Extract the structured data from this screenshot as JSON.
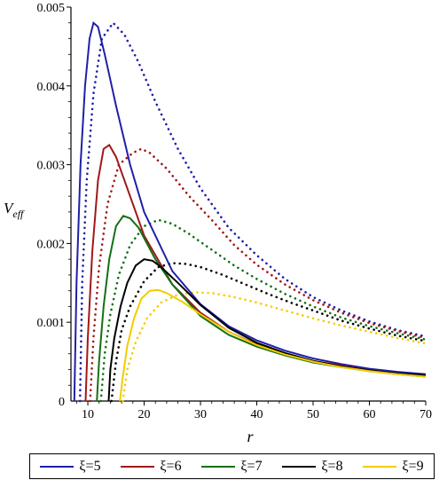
{
  "chart_data": {
    "type": "line",
    "xlabel": "r",
    "ylabel_main": "V",
    "ylabel_sub": "eff",
    "xlim": [
      7,
      70
    ],
    "ylim": [
      0,
      0.005
    ],
    "x_ticks": [
      10,
      20,
      30,
      40,
      50,
      60,
      70
    ],
    "y_ticks": [
      0.001,
      0.002,
      0.003,
      0.004,
      0.005
    ],
    "y_tick_labels": [
      "0.001",
      "0.002",
      "0.003",
      "0.004",
      "0.005"
    ],
    "origin_label": "0",
    "legend_position": "bottom",
    "series": [
      {
        "name": "ξ=5",
        "color": "#1f1fa8",
        "solid": [
          [
            7.6,
            0.0
          ],
          [
            8.0,
            0.0015
          ],
          [
            8.7,
            0.003
          ],
          [
            9.5,
            0.004
          ],
          [
            10.3,
            0.0046
          ],
          [
            11.0,
            0.0048
          ],
          [
            11.8,
            0.00475
          ],
          [
            13.0,
            0.0044
          ],
          [
            15.0,
            0.00375
          ],
          [
            17.5,
            0.003
          ],
          [
            20.0,
            0.0024
          ],
          [
            25.0,
            0.00165
          ],
          [
            30.0,
            0.00123
          ],
          [
            35.0,
            0.00095
          ],
          [
            40.0,
            0.00077
          ],
          [
            45.0,
            0.00064
          ],
          [
            50.0,
            0.00054
          ],
          [
            55.0,
            0.00047
          ],
          [
            60.0,
            0.00041
          ],
          [
            65.0,
            0.00037
          ],
          [
            70.0,
            0.00034
          ]
        ],
        "dotted": [
          [
            8.6,
            0.0
          ],
          [
            9.0,
            0.0015
          ],
          [
            9.8,
            0.0028
          ],
          [
            11.0,
            0.0039
          ],
          [
            12.5,
            0.0046
          ],
          [
            14.5,
            0.0048
          ],
          [
            16.5,
            0.00465
          ],
          [
            19.0,
            0.0043
          ],
          [
            22.0,
            0.0038
          ],
          [
            26.0,
            0.0032
          ],
          [
            30.0,
            0.0027
          ],
          [
            35.0,
            0.0022
          ],
          [
            40.0,
            0.00185
          ],
          [
            45.0,
            0.00155
          ],
          [
            50.0,
            0.00132
          ],
          [
            55.0,
            0.00115
          ],
          [
            60.0,
            0.00101
          ],
          [
            65.0,
            0.0009
          ],
          [
            70.0,
            0.00082
          ]
        ]
      },
      {
        "name": "ξ=6",
        "color": "#a01818",
        "solid": [
          [
            9.6,
            0.0
          ],
          [
            10.0,
            0.0008
          ],
          [
            10.8,
            0.0019
          ],
          [
            11.8,
            0.0028
          ],
          [
            12.8,
            0.0032
          ],
          [
            13.8,
            0.00325
          ],
          [
            15.0,
            0.0031
          ],
          [
            17.0,
            0.0027
          ],
          [
            20.0,
            0.0021
          ],
          [
            25.0,
            0.00148
          ],
          [
            30.0,
            0.00112
          ],
          [
            35.0,
            0.00088
          ],
          [
            40.0,
            0.00072
          ],
          [
            45.0,
            0.0006
          ],
          [
            50.0,
            0.00051
          ],
          [
            55.0,
            0.00045
          ],
          [
            60.0,
            0.00039
          ],
          [
            65.0,
            0.00035
          ],
          [
            70.0,
            0.00032
          ]
        ],
        "dotted": [
          [
            10.4,
            0.0
          ],
          [
            11.0,
            0.0008
          ],
          [
            12.0,
            0.0017
          ],
          [
            13.5,
            0.0025
          ],
          [
            15.5,
            0.003
          ],
          [
            18.0,
            0.00315
          ],
          [
            19.5,
            0.0032
          ],
          [
            21.0,
            0.00315
          ],
          [
            24.0,
            0.00295
          ],
          [
            28.0,
            0.0026
          ],
          [
            32.0,
            0.0023
          ],
          [
            36.0,
            0.00198
          ],
          [
            40.0,
            0.00173
          ],
          [
            45.0,
            0.00148
          ],
          [
            50.0,
            0.00128
          ],
          [
            55.0,
            0.00112
          ],
          [
            60.0,
            0.00099
          ],
          [
            65.0,
            0.00089
          ],
          [
            70.0,
            0.0008
          ]
        ]
      },
      {
        "name": "ξ=7",
        "color": "#137013",
        "solid": [
          [
            11.6,
            0.0
          ],
          [
            12.0,
            0.0005
          ],
          [
            12.8,
            0.0012
          ],
          [
            13.8,
            0.0018
          ],
          [
            15.0,
            0.00222
          ],
          [
            16.3,
            0.00235
          ],
          [
            17.5,
            0.00232
          ],
          [
            19.0,
            0.0022
          ],
          [
            22.0,
            0.0018
          ],
          [
            25.0,
            0.00148
          ],
          [
            30.0,
            0.00108
          ],
          [
            35.0,
            0.00084
          ],
          [
            40.0,
            0.00069
          ],
          [
            45.0,
            0.00058
          ],
          [
            50.0,
            0.00049
          ],
          [
            55.0,
            0.00043
          ],
          [
            60.0,
            0.00038
          ],
          [
            65.0,
            0.00034
          ],
          [
            70.0,
            0.00031
          ]
        ],
        "dotted": [
          [
            12.3,
            0.0
          ],
          [
            13.0,
            0.0006
          ],
          [
            14.0,
            0.0011
          ],
          [
            15.5,
            0.0016
          ],
          [
            17.5,
            0.00198
          ],
          [
            20.0,
            0.00222
          ],
          [
            22.5,
            0.0023
          ],
          [
            25.0,
            0.00225
          ],
          [
            28.0,
            0.00212
          ],
          [
            32.0,
            0.00192
          ],
          [
            36.0,
            0.00172
          ],
          [
            40.0,
            0.00155
          ],
          [
            45.0,
            0.00136
          ],
          [
            50.0,
            0.0012
          ],
          [
            55.0,
            0.00106
          ],
          [
            60.0,
            0.00095
          ],
          [
            65.0,
            0.00086
          ],
          [
            70.0,
            0.00078
          ]
        ]
      },
      {
        "name": "ξ=8",
        "color": "#000000",
        "solid": [
          [
            13.7,
            0.0
          ],
          [
            14.0,
            0.0004
          ],
          [
            14.7,
            0.0008
          ],
          [
            15.8,
            0.0012
          ],
          [
            17.0,
            0.0015
          ],
          [
            18.5,
            0.00172
          ],
          [
            20.0,
            0.0018
          ],
          [
            21.5,
            0.00178
          ],
          [
            23.0,
            0.0017
          ],
          [
            26.0,
            0.0015
          ],
          [
            30.0,
            0.00122
          ],
          [
            35.0,
            0.00093
          ],
          [
            40.0,
            0.00074
          ],
          [
            45.0,
            0.00061
          ],
          [
            50.0,
            0.00051
          ],
          [
            55.0,
            0.00044
          ],
          [
            60.0,
            0.00039
          ],
          [
            65.0,
            0.00035
          ],
          [
            70.0,
            0.00033
          ]
        ],
        "dotted": [
          [
            14.2,
            0.0
          ],
          [
            15.0,
            0.0005
          ],
          [
            16.0,
            0.0009
          ],
          [
            17.5,
            0.0012
          ],
          [
            20.0,
            0.00152
          ],
          [
            22.5,
            0.0017
          ],
          [
            25.0,
            0.00175
          ],
          [
            27.5,
            0.00174
          ],
          [
            30.0,
            0.0017
          ],
          [
            34.0,
            0.0016
          ],
          [
            38.0,
            0.00148
          ],
          [
            42.0,
            0.00136
          ],
          [
            46.0,
            0.00125
          ],
          [
            50.0,
            0.00115
          ],
          [
            55.0,
            0.00102
          ],
          [
            60.0,
            0.00092
          ],
          [
            65.0,
            0.00083
          ],
          [
            70.0,
            0.00076
          ]
        ]
      },
      {
        "name": "ξ=9",
        "color": "#f2cc00",
        "solid": [
          [
            15.7,
            0.0
          ],
          [
            16.2,
            0.0003
          ],
          [
            17.0,
            0.0007
          ],
          [
            18.2,
            0.00105
          ],
          [
            19.5,
            0.0013
          ],
          [
            21.0,
            0.0014
          ],
          [
            22.5,
            0.00141
          ],
          [
            24.0,
            0.00137
          ],
          [
            27.0,
            0.00125
          ],
          [
            30.0,
            0.0011
          ],
          [
            35.0,
            0.00088
          ],
          [
            40.0,
            0.00071
          ],
          [
            45.0,
            0.00059
          ],
          [
            50.0,
            0.0005
          ],
          [
            55.0,
            0.00043
          ],
          [
            60.0,
            0.00038
          ],
          [
            65.0,
            0.00034
          ],
          [
            70.0,
            0.00031
          ]
        ],
        "dotted": [
          [
            16.2,
            0.0
          ],
          [
            17.0,
            0.0004
          ],
          [
            18.5,
            0.00075
          ],
          [
            20.5,
            0.00105
          ],
          [
            23.0,
            0.00125
          ],
          [
            26.0,
            0.00135
          ],
          [
            29.0,
            0.00138
          ],
          [
            32.0,
            0.00137
          ],
          [
            36.0,
            0.00132
          ],
          [
            40.0,
            0.00125
          ],
          [
            45.0,
            0.00115
          ],
          [
            50.0,
            0.00105
          ],
          [
            55.0,
            0.00096
          ],
          [
            60.0,
            0.00088
          ],
          [
            65.0,
            0.0008
          ],
          [
            70.0,
            0.00073
          ]
        ]
      }
    ]
  }
}
